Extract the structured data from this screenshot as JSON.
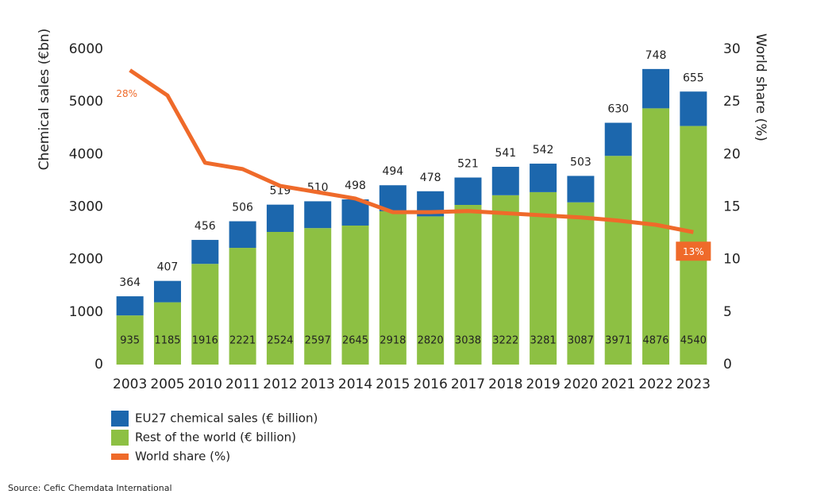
{
  "chart_data": {
    "type": "bar",
    "stacked": true,
    "y_label": "Chemical sales (€bn)",
    "y2_label": "World share (%)",
    "categories": [
      "2003",
      "2005",
      "2010",
      "2011",
      "2012",
      "2013",
      "2014",
      "2015",
      "2016",
      "2017",
      "2018",
      "2019",
      "2020",
      "2021",
      "2022",
      "2023"
    ],
    "series": [
      {
        "name": "EU27 chemical sales (€ billion)",
        "type": "bar",
        "color": "#1c67ad",
        "values": [
          364,
          407,
          456,
          506,
          519,
          510,
          498,
          494,
          478,
          521,
          541,
          542,
          503,
          630,
          748,
          655
        ]
      },
      {
        "name": "Rest of the world (€ billion)",
        "type": "bar",
        "color": "#8dc043",
        "values": [
          935,
          1185,
          1916,
          2221,
          2524,
          2597,
          2645,
          2918,
          2820,
          3038,
          3222,
          3281,
          3087,
          3971,
          4876,
          4540
        ]
      },
      {
        "name": "World share (%)",
        "type": "line",
        "axis": "y2",
        "color": "#ef6a2a",
        "values": [
          28,
          25.6,
          19.2,
          18.6,
          17.0,
          16.4,
          15.8,
          14.5,
          14.5,
          14.6,
          14.4,
          14.2,
          14.0,
          13.7,
          13.3,
          12.6
        ],
        "value_labels": [
          "28%",
          null,
          null,
          null,
          null,
          null,
          null,
          null,
          null,
          null,
          null,
          null,
          null,
          null,
          null,
          "13%"
        ]
      }
    ],
    "ylim": [
      0,
      6000
    ],
    "yticks": [
      0,
      1000,
      2000,
      3000,
      4000,
      5000,
      6000
    ],
    "y2lim": [
      0,
      30
    ],
    "y2ticks": [
      0,
      5,
      10,
      15,
      20,
      25,
      30
    ],
    "source": "Source: Cefic Chemdata International"
  }
}
